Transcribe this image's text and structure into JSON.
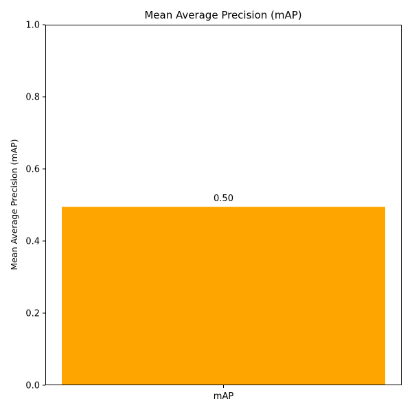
{
  "chart_data": {
    "type": "bar",
    "title": "Mean Average Precision (mAP)",
    "xlabel": "",
    "ylabel": "Mean Average Precision (mAP)",
    "categories": [
      "mAP"
    ],
    "values": [
      0.495
    ],
    "value_labels": [
      "0.50"
    ],
    "ylim": [
      0,
      1
    ],
    "yticks": [
      0.0,
      0.2,
      0.4,
      0.6,
      0.8,
      1.0
    ],
    "ytick_labels": [
      "0.0",
      "0.2",
      "0.4",
      "0.6",
      "0.8",
      "1.0"
    ],
    "bar_color": "#ffa500",
    "grid": false,
    "legend": "none"
  }
}
